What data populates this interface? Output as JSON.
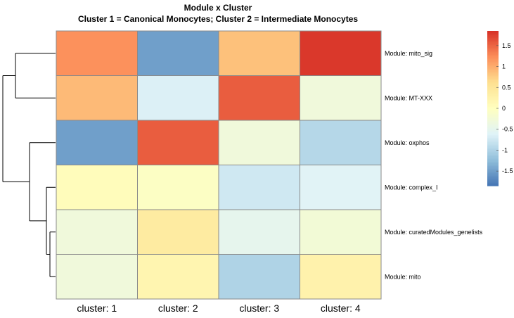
{
  "chart_data": {
    "type": "heatmap",
    "title": "Module x Cluster",
    "subtitle": "Cluster 1 = Canonical Monocytes; Cluster 2 = Intermediate Monocytes",
    "columns": [
      "cluster:  1",
      "cluster:  2",
      "cluster:  3",
      "cluster:  4"
    ],
    "rows": [
      "Module:  mito_sig",
      "Module:  MT-XXX",
      "Module:  oxphos",
      "Module:  complex_I",
      "Module:  curatedModules_genelists",
      "Module:  mito"
    ],
    "values": [
      [
        1.2,
        -1.5,
        0.85,
        1.8
      ],
      [
        0.9,
        -0.65,
        1.55,
        -0.3
      ],
      [
        -1.5,
        1.55,
        -0.3,
        -0.95
      ],
      [
        0.05,
        -0.05,
        -0.75,
        -0.6
      ],
      [
        -0.3,
        0.4,
        -0.5,
        -0.25
      ],
      [
        -0.3,
        0.2,
        -1.0,
        0.25
      ]
    ],
    "colorbar": {
      "range": [
        -1.85,
        1.85
      ],
      "ticks": [
        1.5,
        1,
        0.5,
        0,
        -0.5,
        -1,
        -1.5
      ],
      "tick_labels": [
        "1.5",
        "1",
        "0.5",
        "0",
        "-0.5",
        "-1",
        "-1.5"
      ],
      "colors": [
        "#4575b4",
        "#91bfdb",
        "#e0f3f8",
        "#ffffbf",
        "#fee090",
        "#fc8d59",
        "#d73027"
      ]
    },
    "row_dendrogram": true,
    "grid": true,
    "legend_position": "right"
  }
}
